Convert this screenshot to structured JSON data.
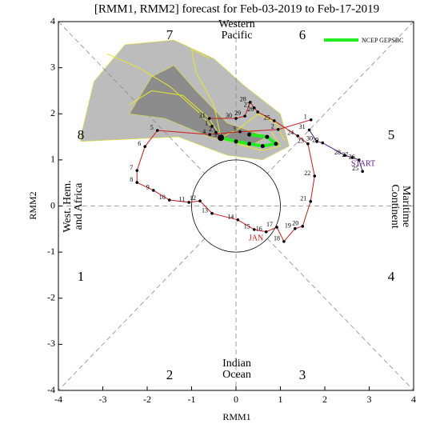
{
  "chart_data": {
    "type": "line",
    "title": "[RMM1, RMM2] forecast for Feb-03-2019 to Feb-17-2019",
    "xlabel": "RMM1",
    "ylabel": "RMM2",
    "xlim": [
      -4,
      4
    ],
    "ylim": [
      -4,
      4
    ],
    "xticks": [
      -4,
      -3,
      -2,
      -1,
      0,
      1,
      2,
      3,
      4
    ],
    "yticks": [
      -4,
      -3,
      -2,
      -1,
      0,
      1,
      2,
      3,
      4
    ],
    "phases": [
      "1",
      "2",
      "3",
      "4",
      "5",
      "6",
      "7",
      "8"
    ],
    "regions": {
      "top": [
        "Western",
        "Pacific"
      ],
      "bottom": [
        "Indian",
        "Ocean"
      ],
      "left": [
        "West. Hem.",
        "and Africa"
      ],
      "right": [
        "Maritime",
        "Continent"
      ]
    },
    "annotations": [
      "START",
      "JAN"
    ],
    "plumes": [
      {
        "color": "#bcbcbc",
        "x": [
          -3.5,
          -3.2,
          -2.5,
          -1.4,
          -0.5,
          0.2,
          1.0,
          1.2,
          0.6,
          -0.2,
          -1.3,
          -3.5
        ],
        "y": [
          1.5,
          2.7,
          3.5,
          3.6,
          3.2,
          2.6,
          2.0,
          1.3,
          1.0,
          1.1,
          1.5,
          1.4
        ]
      },
      {
        "color": "#8c8c8c",
        "x": [
          -2.4,
          -1.9,
          -1.4,
          -0.9,
          -0.2,
          0.4,
          0.7,
          0.3,
          -0.6,
          -1.6
        ],
        "y": [
          2.0,
          2.8,
          3.05,
          2.5,
          1.8,
          1.6,
          1.5,
          1.3,
          1.5,
          1.9
        ]
      }
    ],
    "members": [
      {
        "color": "#e6e62e",
        "x": [
          -0.34,
          -0.8,
          -1.5,
          -2.2,
          -2.9
        ],
        "y": [
          1.48,
          2.0,
          2.6,
          3.0,
          3.3
        ]
      },
      {
        "color": "#e6e62e",
        "x": [
          -0.34,
          -0.6,
          -1.2,
          -1.9,
          -2.4
        ],
        "y": [
          1.48,
          1.9,
          2.4,
          2.5,
          2.2
        ]
      },
      {
        "color": "#e6e62e",
        "x": [
          -0.34,
          0.1,
          0.5,
          0.9,
          1.1
        ],
        "y": [
          1.48,
          1.7,
          2.0,
          1.8,
          1.4
        ]
      },
      {
        "color": "#e6e62e",
        "x": [
          -0.34,
          -0.5,
          -0.9,
          -1.0,
          -0.6
        ],
        "y": [
          1.48,
          2.2,
          2.9,
          3.4,
          3.2
        ]
      },
      {
        "color": "#e6e62e",
        "x": [
          -0.34,
          0.2,
          0.6,
          1.0,
          0.8
        ],
        "y": [
          1.48,
          1.3,
          1.2,
          1.3,
          1.6
        ]
      }
    ],
    "series": [
      {
        "color": "#5a1a8c",
        "x": [
          2.85,
          2.77,
          2.62,
          2.45,
          1.95,
          1.82,
          1.65
        ],
        "y": [
          0.75,
          1.0,
          1.05,
          1.1,
          1.37,
          1.4,
          1.65
        ],
        "labels": [
          "25",
          "26",
          "27",
          "28",
          "29",
          "30",
          "31"
        ]
      },
      {
        "color": "#cc1a1a",
        "x": [
          1.69,
          0.95,
          0.09,
          -0.59,
          -1.77,
          -2.05,
          -2.23,
          -2.23,
          -1.86,
          -1.5,
          -1.06,
          -0.81,
          -0.54,
          0.04,
          0.41,
          0.68,
          0.92,
          1.08,
          1.33,
          1.5,
          1.68,
          1.77,
          1.62,
          1.39,
          0.86,
          0.49,
          0.41,
          0.32,
          0.2,
          0.0,
          -0.6
        ],
        "y": [
          1.87,
          1.66,
          1.61,
          1.55,
          1.64,
          1.29,
          0.77,
          0.51,
          0.34,
          0.13,
          0.08,
          0.11,
          -0.16,
          -0.3,
          -0.51,
          -0.56,
          -0.46,
          -0.77,
          -0.49,
          -0.44,
          0.1,
          0.65,
          1.35,
          1.52,
          1.85,
          2.04,
          2.13,
          2.25,
          1.95,
          1.9,
          1.9
        ],
        "labels": [
          "1",
          "2",
          "3",
          "4",
          "5",
          "6",
          "7",
          "8",
          "9",
          "10",
          "11",
          "12",
          "13",
          "14",
          "15",
          "16",
          "17",
          "18",
          "19",
          "20",
          "21",
          "22",
          "23",
          "24",
          "25",
          "26",
          "27",
          "28",
          "29",
          "30",
          "31"
        ]
      },
      {
        "color": "#1a1acc",
        "x": [
          -0.54,
          -0.45,
          -0.34
        ],
        "y": [
          1.73,
          1.6,
          1.48
        ],
        "labels": [
          "1",
          "2",
          "3"
        ]
      },
      {
        "name": "NCEP GEPSBC",
        "color": "#22ee22",
        "x": [
          -0.34,
          0.0,
          0.3,
          0.6,
          0.9,
          0.7,
          0.3
        ],
        "y": [
          1.48,
          1.4,
          1.35,
          1.3,
          1.35,
          1.5,
          1.55
        ]
      }
    ]
  }
}
